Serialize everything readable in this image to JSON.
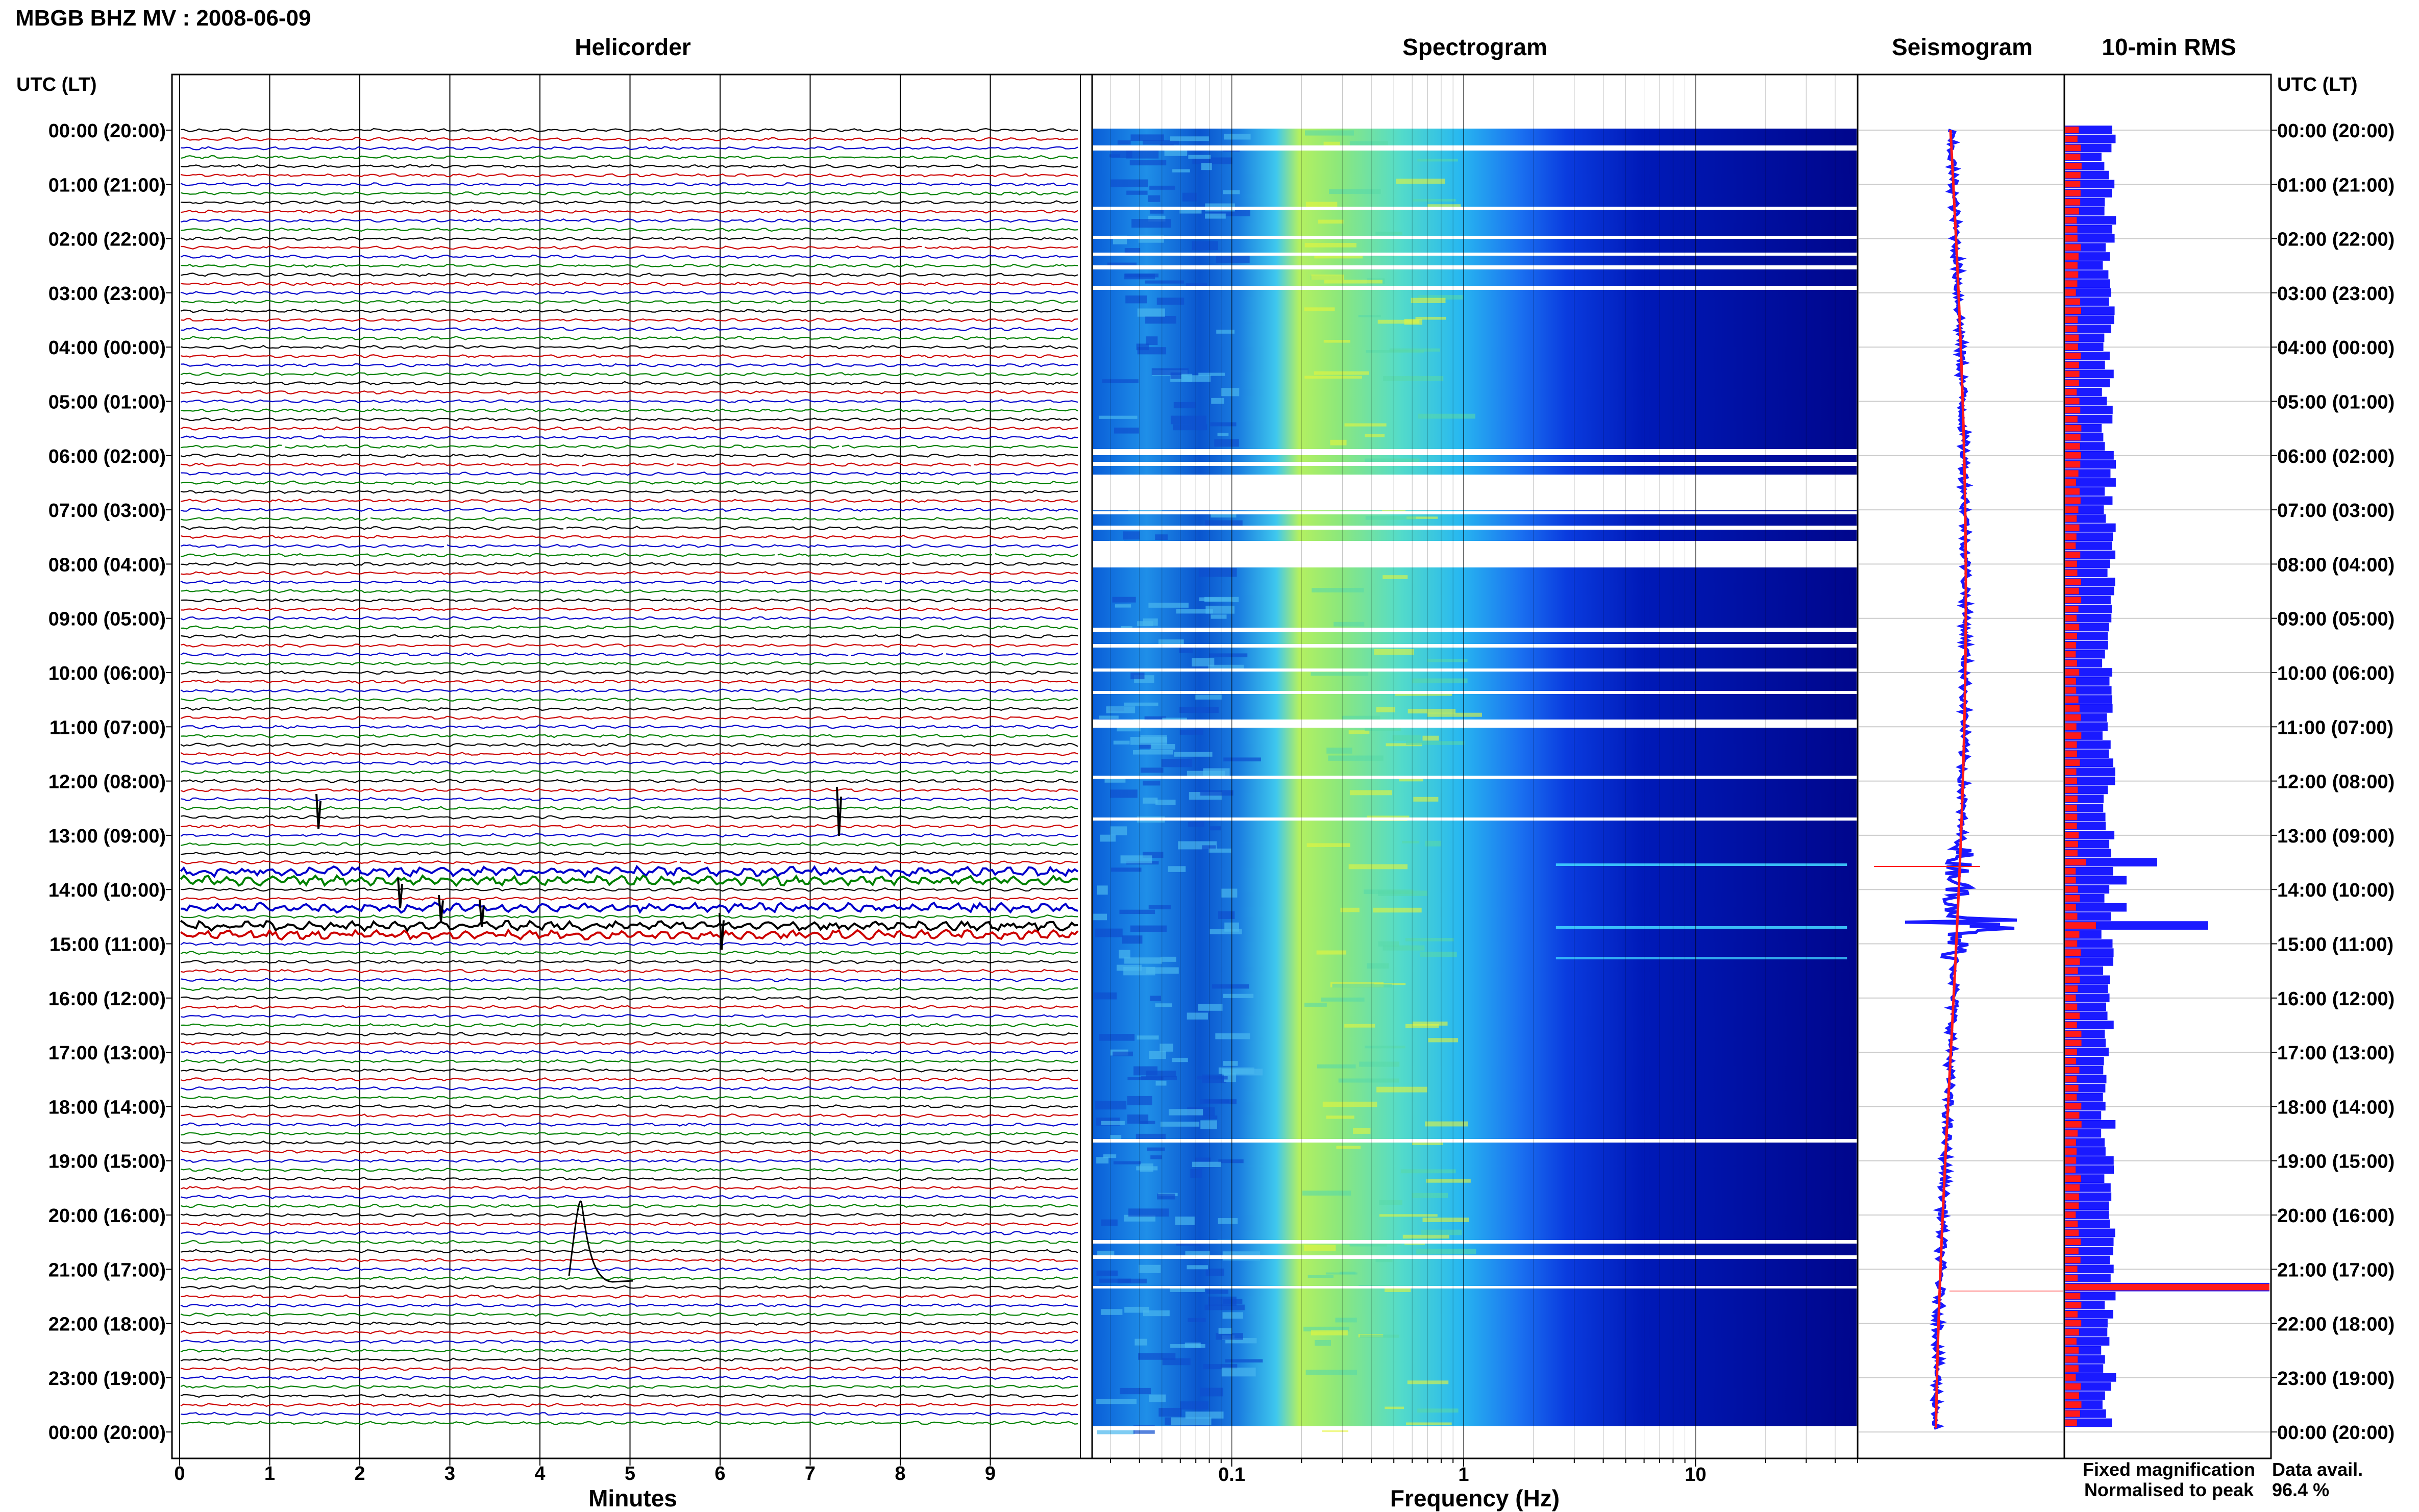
{
  "header": {
    "title": "MBGB BHZ MV : 2008-06-09"
  },
  "panels": {
    "helicorder": "Helicorder",
    "spectrogram": "Spectrogram",
    "seismogram": "Seismogram",
    "rms": "10-min RMS"
  },
  "axes": {
    "utc_label_left": "UTC (LT)",
    "utc_label_right": "UTC (LT)",
    "time_labels": [
      "00:00 (20:00)",
      "01:00 (21:00)",
      "02:00 (22:00)",
      "03:00 (23:00)",
      "04:00 (00:00)",
      "05:00 (01:00)",
      "06:00 (02:00)",
      "07:00 (03:00)",
      "08:00 (04:00)",
      "09:00 (05:00)",
      "10:00 (06:00)",
      "11:00 (07:00)",
      "12:00 (08:00)",
      "13:00 (09:00)",
      "14:00 (10:00)",
      "15:00 (11:00)",
      "16:00 (12:00)",
      "17:00 (13:00)",
      "18:00 (14:00)",
      "19:00 (15:00)",
      "20:00 (16:00)",
      "21:00 (17:00)",
      "22:00 (18:00)",
      "23:00 (19:00)",
      "00:00 (20:00)"
    ],
    "minutes_label": "Minutes",
    "minute_ticks": [
      "0",
      "1",
      "2",
      "3",
      "4",
      "5",
      "6",
      "7",
      "8",
      "9"
    ],
    "frequency_label": "Frequency (Hz)",
    "frequency_ticks": [
      "0.1",
      "1",
      "10"
    ]
  },
  "legend": {
    "fixed": "Fixed magnification",
    "normalised": "Normalised to peak",
    "fixed_color": "#1a1aff",
    "normalised_color": "#ff1a1a"
  },
  "availability": {
    "label": "Data avail.",
    "value": "96.4 %"
  },
  "chart_data": [
    {
      "type": "line",
      "panel": "helicorder",
      "xlim": [
        0,
        10
      ],
      "line_colors": [
        "#000000",
        "#cc0000",
        "#0000cc",
        "#008000"
      ],
      "rows": 144
    },
    {
      "type": "heatmap",
      "panel": "spectrogram",
      "x_scale": "log",
      "xlim": [
        0.025,
        50
      ],
      "colormap": [
        "#00008f",
        "#0000ff",
        "#0080ff",
        "#00c8ff",
        "#80ff80",
        "#ffff00"
      ]
    },
    {
      "type": "line",
      "panel": "seismogram",
      "series": [
        {
          "name": "Fixed magnification",
          "color": "#1a1aff"
        },
        {
          "name": "Normalised to peak",
          "color": "#ff1a1a"
        }
      ]
    },
    {
      "type": "bar",
      "panel": "rms",
      "series": [
        {
          "name": "Fixed magnification",
          "color": "#1a1aff"
        },
        {
          "name": "Normalised to peak",
          "color": "#ff1a1a"
        }
      ]
    }
  ]
}
